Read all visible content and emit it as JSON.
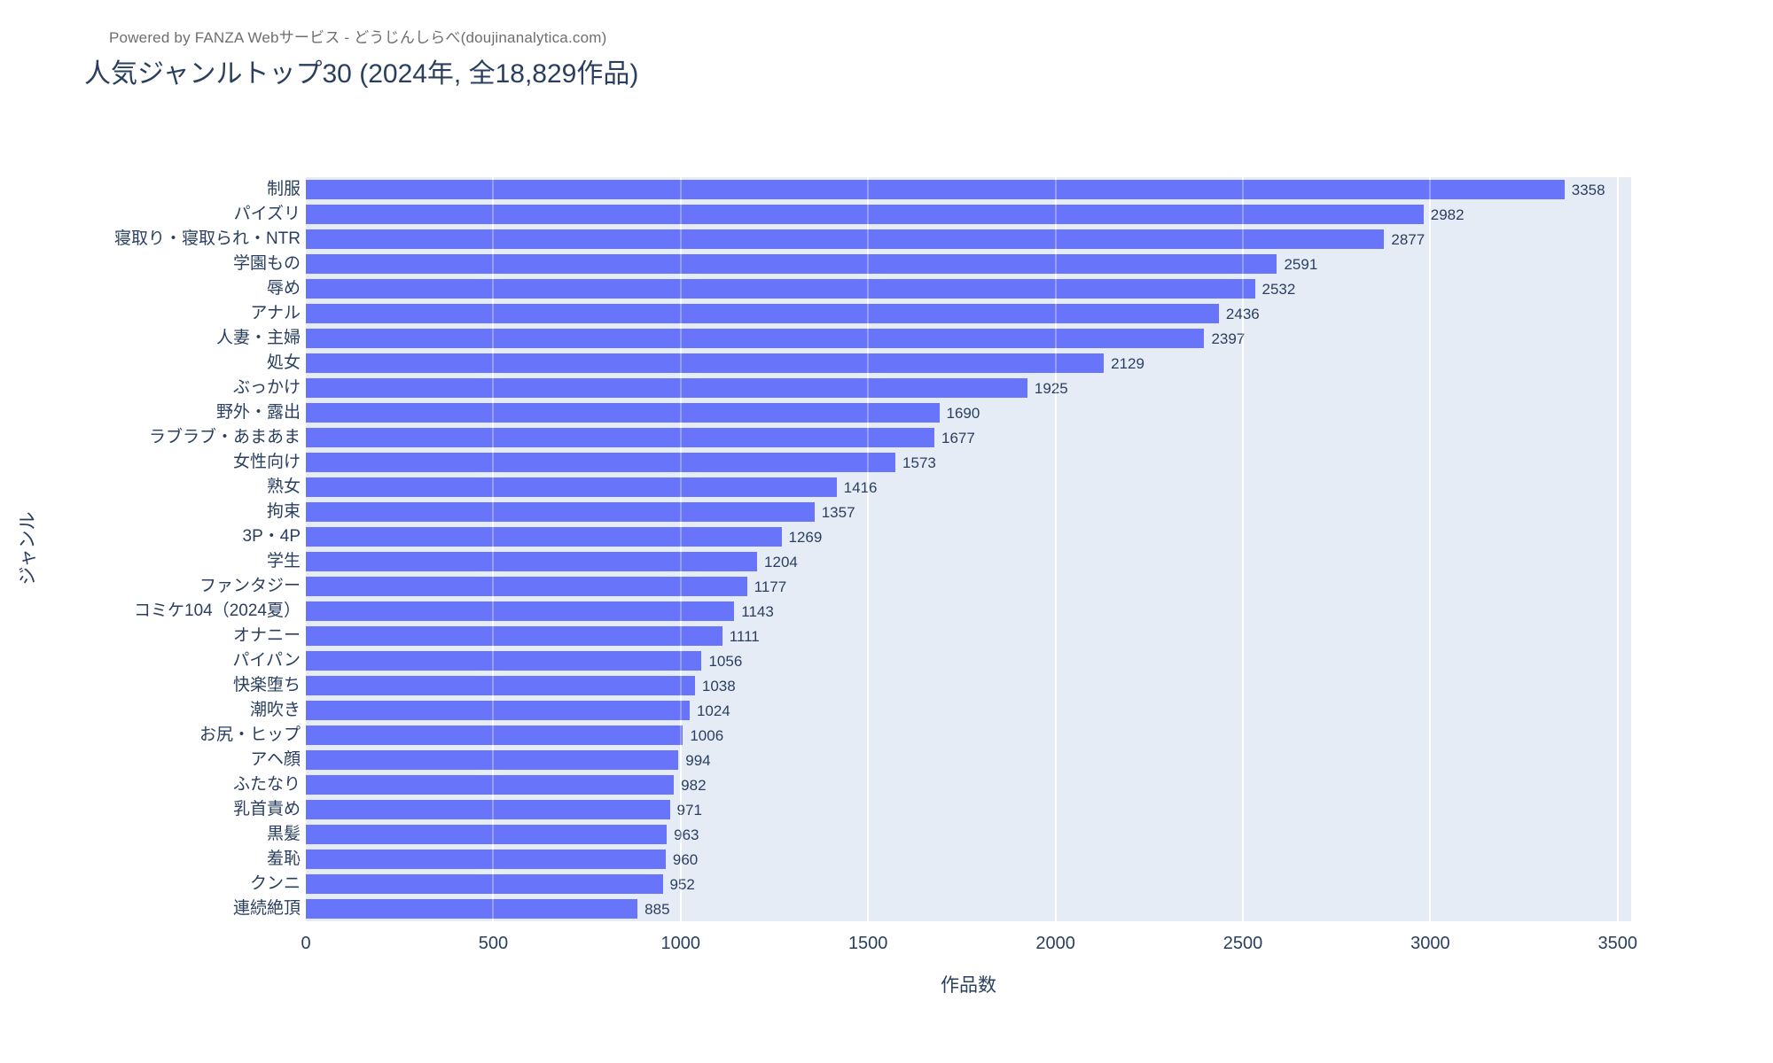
{
  "header": {
    "powered_by": "Powered by FANZA Webサービス - どうじんしらべ(doujinanalytica.com)",
    "title": "人気ジャンルトップ30 (2024年, 全18,829作品)"
  },
  "colors": {
    "bar": "#636EFA",
    "plot_background": "#E5ECF6",
    "text": "#2A3F5F",
    "muted_text": "#6E6E6E",
    "gridline": "#FFFFFF"
  },
  "chart_data": {
    "type": "bar",
    "orientation": "horizontal",
    "title": "人気ジャンルトップ30 (2024年, 全18,829作品)",
    "xlabel": "作品数",
    "ylabel": "ジャンル",
    "xlim": [
      0,
      3536
    ],
    "x_ticks": [
      0,
      500,
      1000,
      1500,
      2000,
      2500,
      3000,
      3500
    ],
    "grid": true,
    "legend": "none",
    "categories": [
      "制服",
      "パイズリ",
      "寝取り・寝取られ・NTR",
      "学園もの",
      "辱め",
      "アナル",
      "人妻・主婦",
      "処女",
      "ぶっかけ",
      "野外・露出",
      "ラブラブ・あまあま",
      "女性向け",
      "熟女",
      "拘束",
      "3P・4P",
      "学生",
      "ファンタジー",
      "コミケ104（2024夏）",
      "オナニー",
      "パイパン",
      "快楽堕ち",
      "潮吹き",
      "お尻・ヒップ",
      "アヘ顔",
      "ふたなり",
      "乳首責め",
      "黒髪",
      "羞恥",
      "クンニ",
      "連続絶頂"
    ],
    "values": [
      3358,
      2982,
      2877,
      2591,
      2532,
      2436,
      2397,
      2129,
      1925,
      1690,
      1677,
      1573,
      1416,
      1357,
      1269,
      1204,
      1177,
      1143,
      1111,
      1056,
      1038,
      1024,
      1006,
      994,
      982,
      971,
      963,
      960,
      952,
      885
    ]
  }
}
